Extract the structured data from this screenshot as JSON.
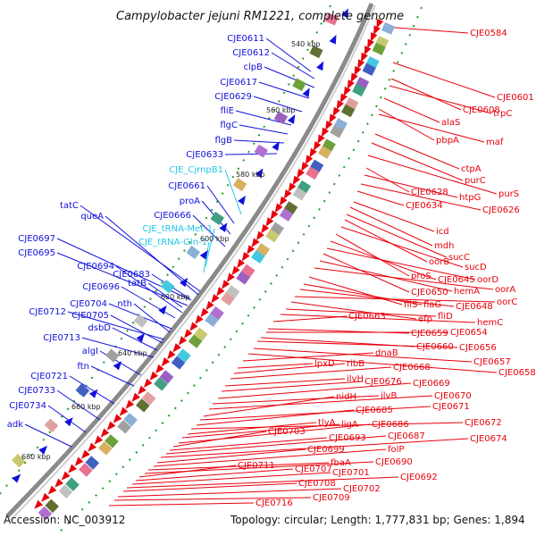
{
  "title": "Campylobacter jejuni RM1221, complete genome",
  "footer": {
    "accession": "Accession: NC_003912",
    "summary": "Topology: circular; Length: 1,777,831 bp; Genes: 1,894"
  },
  "colors": {
    "forward": "#e8000b",
    "reverse": "#1010dd",
    "rna": "#22c6e8",
    "backbone": "#8a8a8a",
    "tick": "#1e9e1e"
  },
  "positions": [
    "540 kbp",
    "560 kbp",
    "580 kbp",
    "600 kbp",
    "620 kbp",
    "640 kbp",
    "660 kbp",
    "680 kbp"
  ],
  "reverse_labels": [
    "CJE0611",
    "CJE0612",
    "clpB",
    "CJE0617",
    "CJE0629",
    "fliE",
    "flgC",
    "flgB",
    "CJE0633",
    "CJE_CjrnpB1",
    "CJE0661",
    "proA",
    "CJE0666",
    "CJE_tRNA-Met-1",
    "CJE_tRNA-Gln-1",
    "tatC",
    "queA",
    "CJE0697",
    "CJE0695",
    "CJE0694",
    "CJE0683",
    "tatB",
    "CJE0696",
    "CJE0704",
    "nth",
    "CJE0712",
    "CJE0705",
    "dsbD",
    "CJE0713",
    "algI",
    "ftn",
    "CJE0721",
    "CJE0733",
    "CJE0734",
    "adk"
  ],
  "forward_labels": [
    "CJE0584",
    "CJE0601",
    "CJE0608",
    "trpC",
    "alaS",
    "pbpA",
    "maf",
    "ctpA",
    "purC",
    "purS",
    "CJE0628",
    "htpG",
    "CJE0626",
    "CJE0634",
    "icd",
    "mdh",
    "sucC",
    "oorB",
    "sucD",
    "proS",
    "CJE0645",
    "oorD",
    "CJE0650",
    "hemA",
    "oorA",
    "fliS",
    "flaG",
    "CJE0648",
    "oorC",
    "efp",
    "fliD",
    "hemC",
    "CJE0663",
    "CJE0659",
    "CJE0654",
    "CJE0660",
    "CJE0656",
    "CJE0657",
    "CJE0658",
    "dnaB",
    "lpxD",
    "ribB",
    "CJE0668",
    "ilvH",
    "CJE0676",
    "CJE0669",
    "ilvB",
    "CJE0670",
    "nidH",
    "CJE0671",
    "CJE0685",
    "CJE0672",
    "tlyA",
    "ligA",
    "CJE0686",
    "CJE0703",
    "CJE0693",
    "CJE0687",
    "CJE0674",
    "CJE0699",
    "folP",
    "fbaA",
    "CJE0690",
    "CJE0711",
    "CJE0707",
    "CJE0701",
    "CJE0692",
    "CJE0708",
    "CJE0702",
    "CJE0709",
    "CJE0716"
  ]
}
